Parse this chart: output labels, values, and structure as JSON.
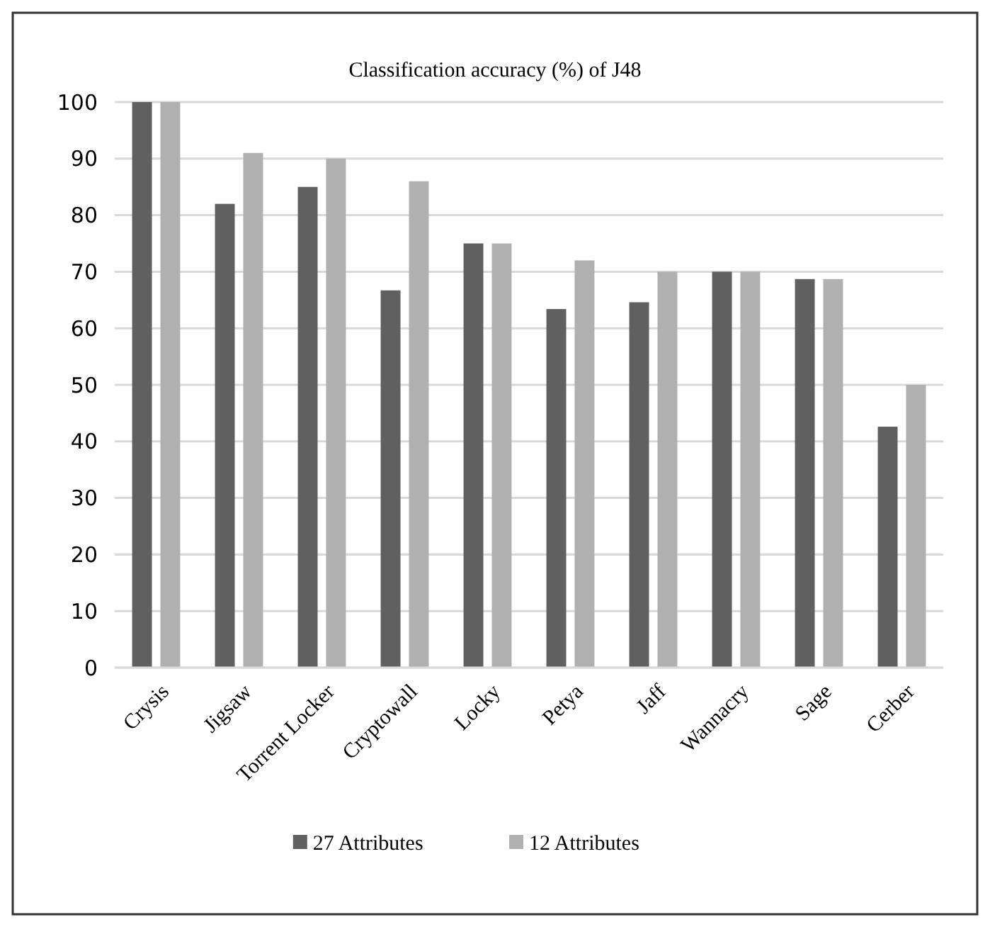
{
  "chart_data": {
    "type": "bar",
    "title": "Classification accuracy (%) of J48",
    "categories": [
      "Crysis",
      "Jigsaw",
      "Torrent Locker",
      "Cryptowall",
      "Locky",
      "Petya",
      "Jaff",
      "Wannacry",
      "Sage",
      "Cerber"
    ],
    "series": [
      {
        "name": "27 Attributes",
        "color": "#606060",
        "values": [
          100,
          82,
          85,
          66.7,
          75,
          63.4,
          64.6,
          70,
          68.7,
          42.6
        ]
      },
      {
        "name": "12 Attributes",
        "color": "#b0b0b0",
        "values": [
          100,
          91,
          90,
          86,
          75,
          72,
          70,
          70,
          68.7,
          50
        ]
      }
    ],
    "ylim": [
      0,
      100
    ],
    "yticks": [
      0,
      10,
      20,
      30,
      40,
      50,
      60,
      70,
      80,
      90,
      100
    ],
    "grid": "y",
    "legend": "bottom"
  }
}
